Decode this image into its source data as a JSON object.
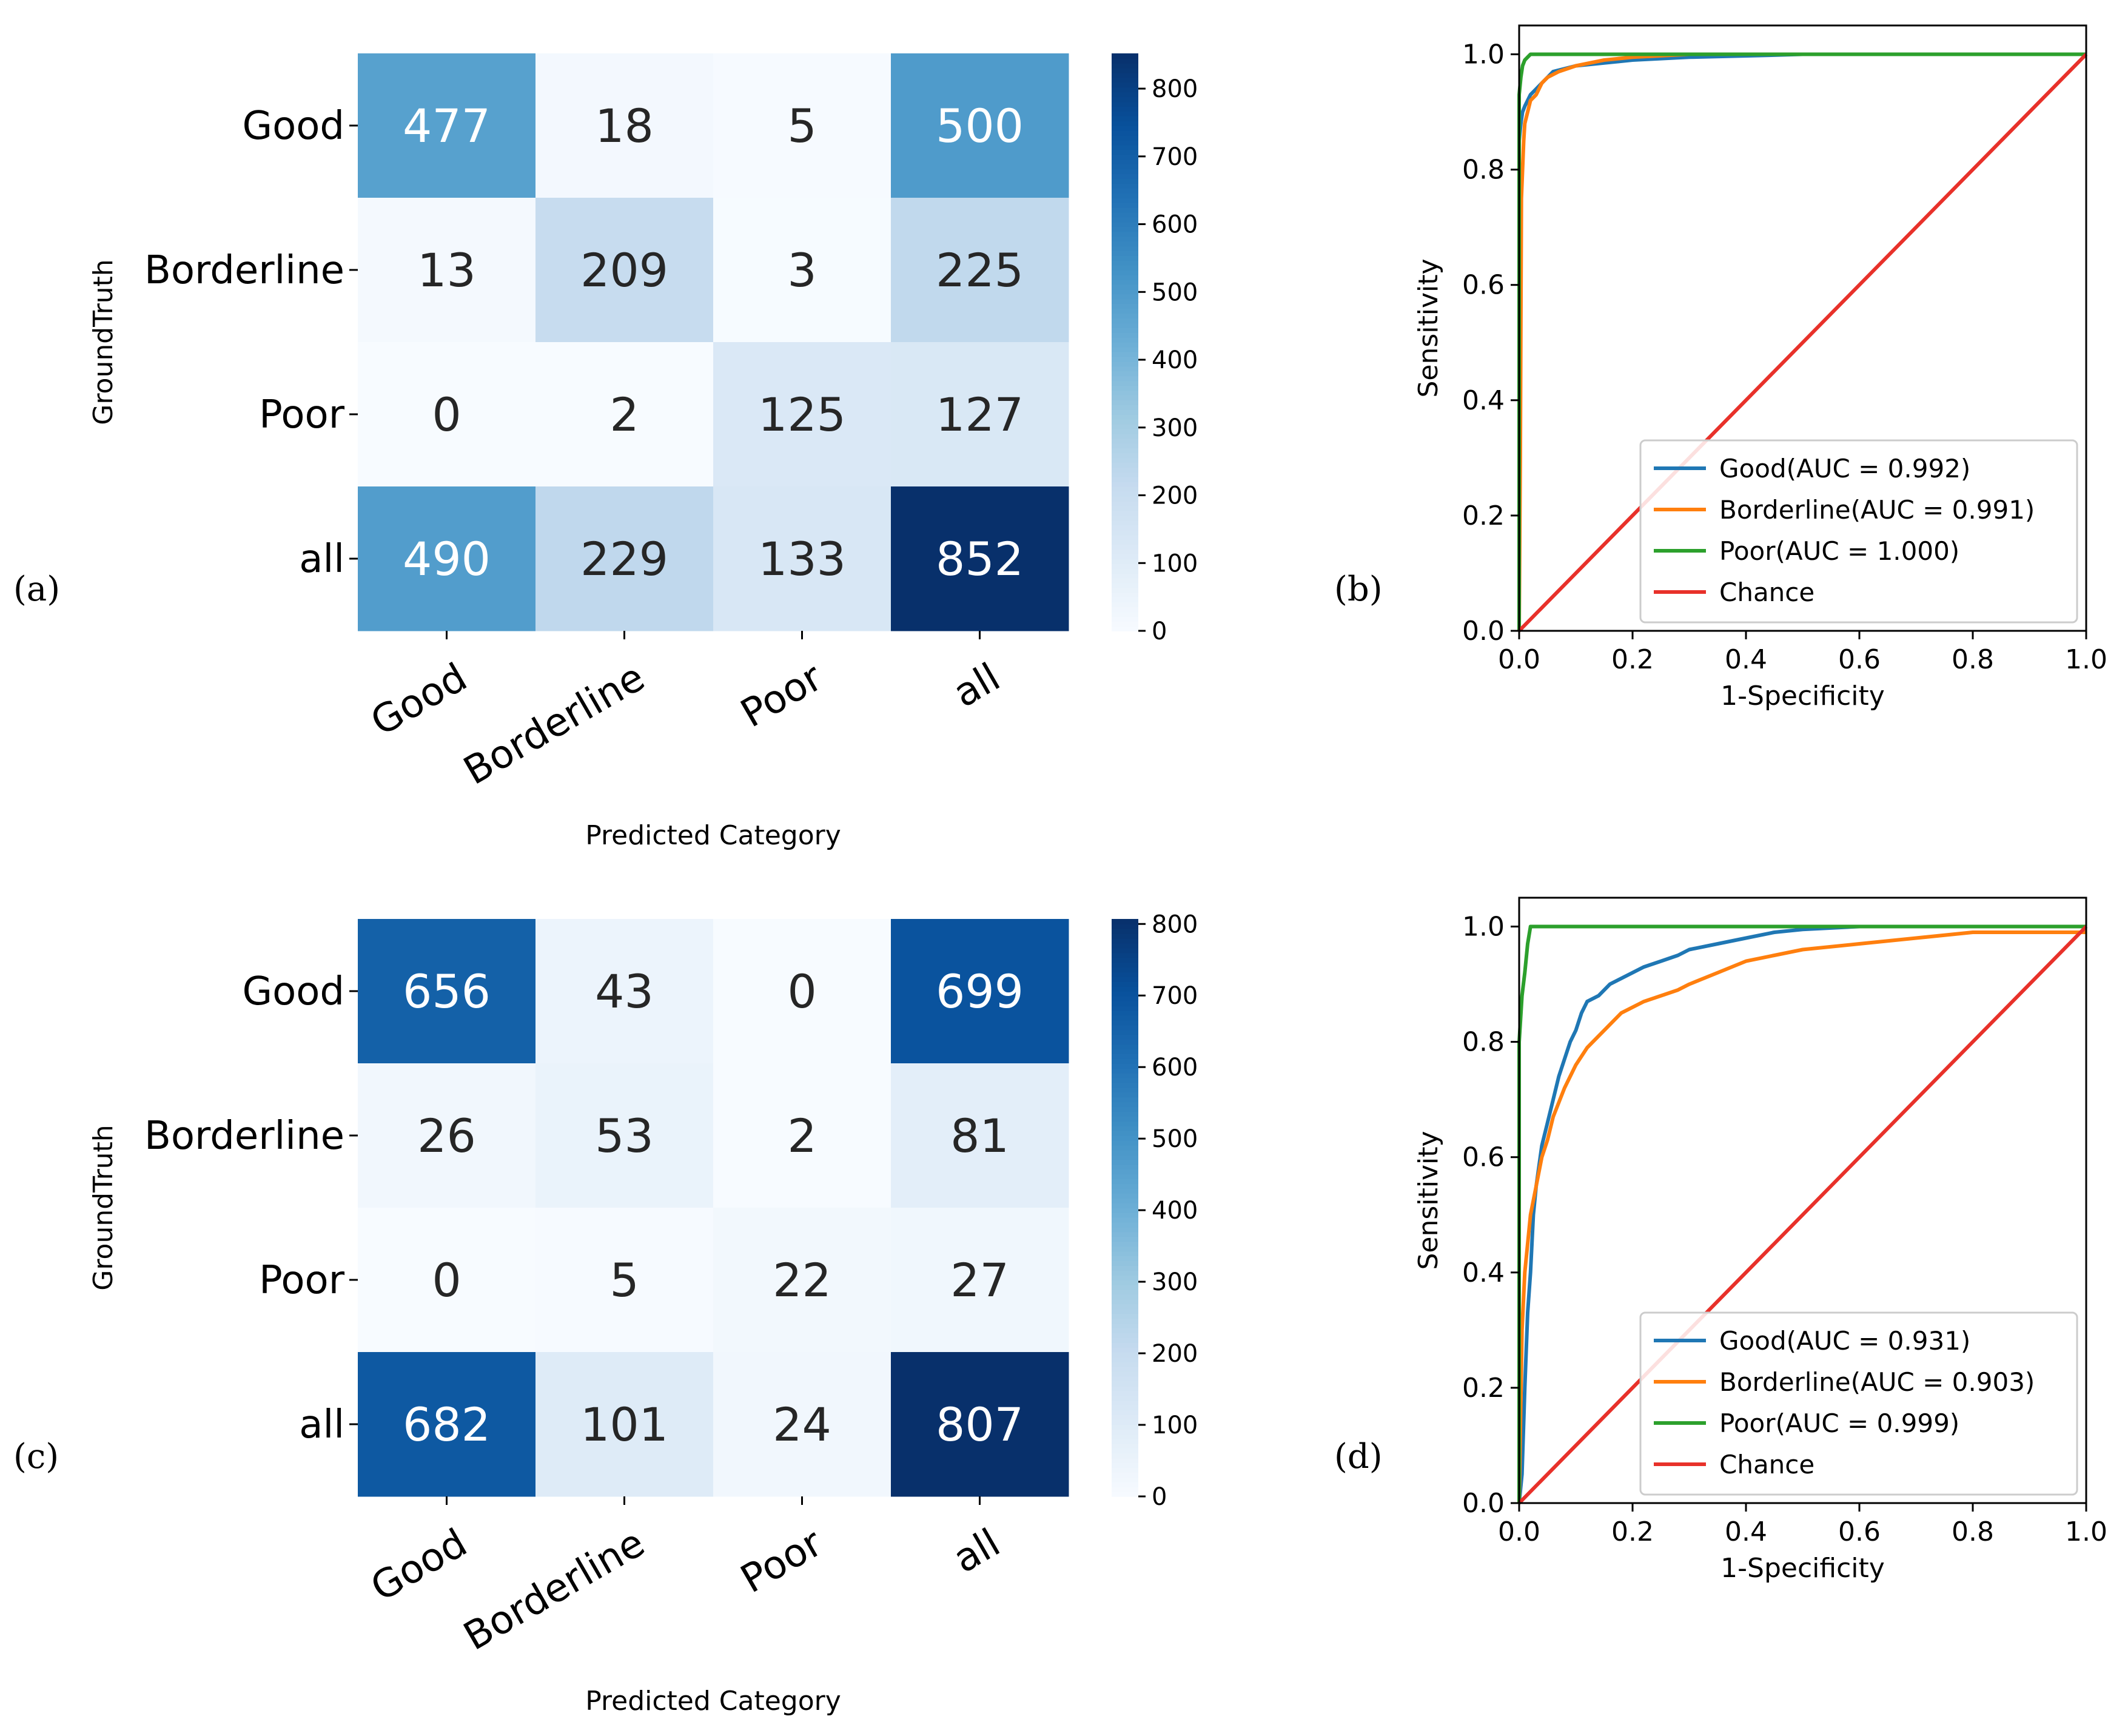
{
  "panels": {
    "a": "(a)",
    "b": "(b)",
    "c": "(c)",
    "d": "(d)"
  },
  "chart_data": [
    {
      "type": "heatmap",
      "panel": "a",
      "title": "",
      "xlabel": "Predicted Category",
      "ylabel": "GroundTruth",
      "row_labels": [
        "Good",
        "Borderline",
        "Poor",
        "all"
      ],
      "col_labels": [
        "Good",
        "Borderline",
        "Poor",
        "all"
      ],
      "values": [
        [
          477,
          18,
          5,
          500
        ],
        [
          13,
          209,
          3,
          225
        ],
        [
          0,
          2,
          125,
          127
        ],
        [
          490,
          229,
          133,
          852
        ]
      ],
      "colorbar": {
        "min": 0,
        "max": 852,
        "ticks": [
          0,
          100,
          200,
          300,
          400,
          500,
          600,
          700,
          800
        ]
      },
      "colormap": [
        "#f7fbff",
        "#deebf7",
        "#c6dbef",
        "#9ecae1",
        "#6baed6",
        "#4292c6",
        "#2171b5",
        "#08519c",
        "#08306b"
      ]
    },
    {
      "type": "line",
      "panel": "b",
      "xlabel": "1-Specificity",
      "ylabel": "Sensitivity",
      "xlim": [
        0,
        1
      ],
      "ylim": [
        0,
        1.05
      ],
      "xticks": [
        "0.0",
        "0.2",
        "0.4",
        "0.6",
        "0.8",
        "1.0"
      ],
      "yticks": [
        "0.0",
        "0.2",
        "0.4",
        "0.6",
        "0.8",
        "1.0"
      ],
      "legend_position": "lower-right",
      "series": [
        {
          "name": "Good(AUC = 0.992)",
          "color": "#1f77b4",
          "x": [
            0,
            0,
            0.003,
            0.006,
            0.01,
            0.015,
            0.02,
            0.03,
            0.04,
            0.05,
            0.06,
            0.08,
            0.1,
            0.15,
            0.2,
            0.3,
            0.43,
            0.5,
            1.0
          ],
          "y": [
            0,
            0.85,
            0.88,
            0.9,
            0.91,
            0.92,
            0.93,
            0.94,
            0.95,
            0.96,
            0.97,
            0.975,
            0.98,
            0.985,
            0.99,
            0.995,
            0.998,
            1.0,
            1.0
          ]
        },
        {
          "name": "Borderline(AUC = 0.991)",
          "color": "#ff7f0e",
          "x": [
            0,
            0.002,
            0.004,
            0.006,
            0.008,
            0.01,
            0.015,
            0.02,
            0.03,
            0.04,
            0.05,
            0.07,
            0.1,
            0.15,
            0.2,
            0.3,
            1.0
          ],
          "y": [
            0,
            0.3,
            0.75,
            0.8,
            0.85,
            0.88,
            0.9,
            0.92,
            0.93,
            0.95,
            0.96,
            0.97,
            0.98,
            0.99,
            0.995,
            1.0,
            1.0
          ]
        },
        {
          "name": "Poor(AUC = 1.000)",
          "color": "#2ca02c",
          "x": [
            0,
            0,
            0.003,
            0.006,
            0.01,
            0.02,
            1.0
          ],
          "y": [
            0,
            0.93,
            0.96,
            0.98,
            0.99,
            1.0,
            1.0
          ]
        },
        {
          "name": "Chance",
          "color": "#e8312a",
          "x": [
            0,
            1
          ],
          "y": [
            0,
            1
          ]
        }
      ]
    },
    {
      "type": "heatmap",
      "panel": "c",
      "title": "",
      "xlabel": "Predicted Category",
      "ylabel": "GroundTruth",
      "row_labels": [
        "Good",
        "Borderline",
        "Poor",
        "all"
      ],
      "col_labels": [
        "Good",
        "Borderline",
        "Poor",
        "all"
      ],
      "values": [
        [
          656,
          43,
          0,
          699
        ],
        [
          26,
          53,
          2,
          81
        ],
        [
          0,
          5,
          22,
          27
        ],
        [
          682,
          101,
          24,
          807
        ]
      ],
      "colorbar": {
        "min": 0,
        "max": 807,
        "ticks": [
          0,
          100,
          200,
          300,
          400,
          500,
          600,
          700,
          800
        ]
      },
      "colormap": [
        "#f7fbff",
        "#deebf7",
        "#c6dbef",
        "#9ecae1",
        "#6baed6",
        "#4292c6",
        "#2171b5",
        "#08519c",
        "#08306b"
      ]
    },
    {
      "type": "line",
      "panel": "d",
      "xlabel": "1-Specificity",
      "ylabel": "Sensitivity",
      "xlim": [
        0,
        1
      ],
      "ylim": [
        0,
        1.05
      ],
      "xticks": [
        "0.0",
        "0.2",
        "0.4",
        "0.6",
        "0.8",
        "1.0"
      ],
      "yticks": [
        "0.0",
        "0.2",
        "0.4",
        "0.6",
        "0.8",
        "1.0"
      ],
      "legend_position": "lower-right",
      "series": [
        {
          "name": "Good(AUC = 0.931)",
          "color": "#1f77b4",
          "x": [
            0,
            0.005,
            0.01,
            0.015,
            0.02,
            0.025,
            0.03,
            0.04,
            0.05,
            0.06,
            0.07,
            0.08,
            0.09,
            0.1,
            0.11,
            0.12,
            0.14,
            0.16,
            0.18,
            0.2,
            0.22,
            0.25,
            0.28,
            0.3,
            0.35,
            0.4,
            0.45,
            0.5,
            0.6,
            0.7,
            1.0
          ],
          "y": [
            0,
            0.05,
            0.2,
            0.33,
            0.4,
            0.5,
            0.55,
            0.62,
            0.66,
            0.7,
            0.74,
            0.77,
            0.8,
            0.82,
            0.85,
            0.87,
            0.88,
            0.9,
            0.91,
            0.92,
            0.93,
            0.94,
            0.95,
            0.96,
            0.97,
            0.98,
            0.99,
            0.995,
            1.0,
            1.0,
            1.0
          ]
        },
        {
          "name": "Borderline(AUC = 0.903)",
          "color": "#ff7f0e",
          "x": [
            0,
            0.005,
            0.01,
            0.015,
            0.02,
            0.03,
            0.04,
            0.05,
            0.06,
            0.08,
            0.1,
            0.12,
            0.14,
            0.16,
            0.18,
            0.2,
            0.22,
            0.25,
            0.28,
            0.3,
            0.35,
            0.4,
            0.45,
            0.5,
            0.6,
            0.7,
            0.8,
            1.0
          ],
          "y": [
            0,
            0.3,
            0.4,
            0.45,
            0.5,
            0.55,
            0.6,
            0.63,
            0.67,
            0.72,
            0.76,
            0.79,
            0.81,
            0.83,
            0.85,
            0.86,
            0.87,
            0.88,
            0.89,
            0.9,
            0.92,
            0.94,
            0.95,
            0.96,
            0.97,
            0.98,
            0.99,
            0.99
          ]
        },
        {
          "name": "Poor(AUC = 0.999)",
          "color": "#2ca02c",
          "x": [
            0,
            0,
            0.005,
            0.01,
            0.015,
            0.02,
            1.0
          ],
          "y": [
            0,
            0.8,
            0.88,
            0.92,
            0.97,
            1.0,
            1.0
          ]
        },
        {
          "name": "Chance",
          "color": "#e8312a",
          "x": [
            0,
            1
          ],
          "y": [
            0,
            1
          ]
        }
      ]
    }
  ]
}
